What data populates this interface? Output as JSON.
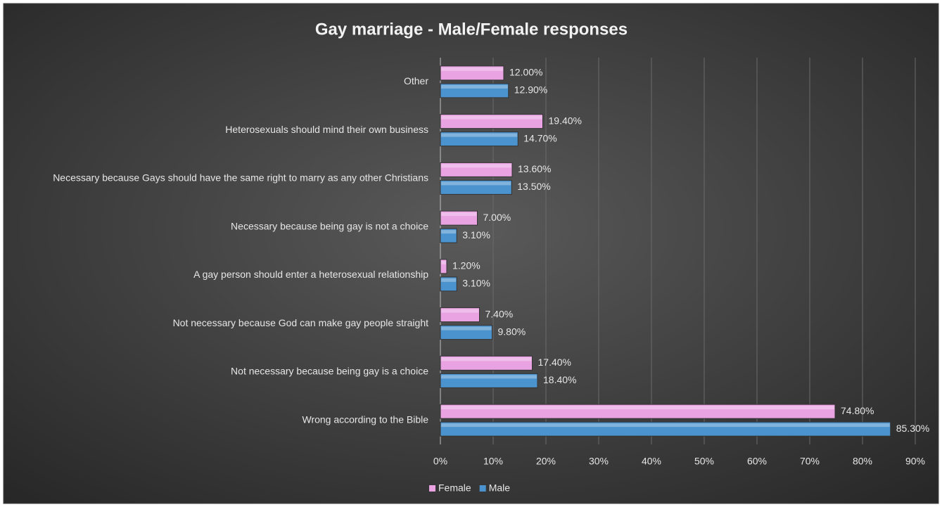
{
  "chart_data": {
    "type": "hbar",
    "title": "Gay marriage - Male/Female responses",
    "categories": [
      "Other",
      "Heterosexuals should mind their own business",
      "Necessary because Gays should have the same right to marry as any other Christians",
      "Necessary because being gay is not a choice",
      "A gay person should enter a heterosexual relationship",
      "Not necessary because God can make gay people straight",
      "Not necessary because being gay is a choice",
      "Wrong according to the Bible"
    ],
    "series": [
      {
        "name": "Female",
        "color": "#e9a3e2",
        "values": [
          12.0,
          19.4,
          13.6,
          7.0,
          1.2,
          7.4,
          17.4,
          74.8
        ],
        "value_labels": [
          "12.00%",
          "19.40%",
          "13.60%",
          "7.00%",
          "1.20%",
          "7.40%",
          "17.40%",
          "74.80%"
        ]
      },
      {
        "name": "Male",
        "color": "#4b93cf",
        "values": [
          12.9,
          14.7,
          13.5,
          3.1,
          3.1,
          9.8,
          18.4,
          85.3
        ],
        "value_labels": [
          "12.90%",
          "14.70%",
          "13.50%",
          "3.10%",
          "3.10%",
          "9.80%",
          "18.40%",
          "85.30%"
        ]
      }
    ],
    "xlim": [
      0,
      90
    ],
    "xticks": [
      {
        "value": 0,
        "label": "0%"
      },
      {
        "value": 10,
        "label": "10%"
      },
      {
        "value": 20,
        "label": "20%"
      },
      {
        "value": 30,
        "label": "30%"
      },
      {
        "value": 40,
        "label": "40%"
      },
      {
        "value": 50,
        "label": "50%"
      },
      {
        "value": 60,
        "label": "60%"
      },
      {
        "value": 70,
        "label": "70%"
      },
      {
        "value": 80,
        "label": "80%"
      },
      {
        "value": 90,
        "label": "90%"
      }
    ],
    "grid": true,
    "legend": "bottom"
  }
}
